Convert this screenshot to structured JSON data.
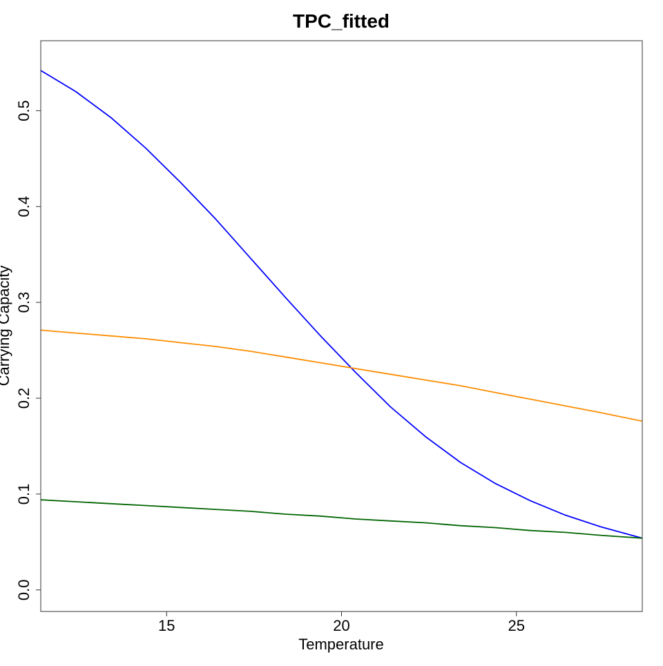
{
  "chart_data": {
    "type": "line",
    "title": "TPC_fitted",
    "xlabel": "Temperature",
    "ylabel": "Carrying Capacity",
    "xlim": [
      11.4,
      28.6
    ],
    "ylim": [
      -0.0225,
      0.573
    ],
    "grid": false,
    "x_ticks": [
      15,
      20,
      25
    ],
    "y_ticks": [
      0.0,
      0.1,
      0.2,
      0.3,
      0.4,
      0.5
    ],
    "x_tick_labels": [
      "15",
      "20",
      "25"
    ],
    "y_tick_labels": [
      "0.0",
      "0.1",
      "0.2",
      "0.3",
      "0.4",
      "0.5"
    ],
    "x": [
      11.4,
      12.4,
      13.4,
      14.4,
      15.4,
      16.4,
      17.4,
      18.4,
      19.4,
      20.4,
      21.4,
      22.4,
      23.4,
      24.4,
      25.4,
      26.4,
      27.4,
      28.6
    ],
    "series": [
      {
        "color": "#0000ff",
        "values": [
          0.542,
          0.52,
          0.493,
          0.461,
          0.425,
          0.387,
          0.346,
          0.305,
          0.265,
          0.227,
          0.191,
          0.16,
          0.133,
          0.111,
          0.093,
          0.078,
          0.066,
          0.054
        ]
      },
      {
        "color": "#ff8c00",
        "values": [
          0.271,
          0.268,
          0.265,
          0.262,
          0.258,
          0.254,
          0.249,
          0.243,
          0.237,
          0.231,
          0.225,
          0.219,
          0.213,
          0.206,
          0.199,
          0.192,
          0.185,
          0.176
        ]
      },
      {
        "color": "#006400",
        "values": [
          0.094,
          0.092,
          0.09,
          0.088,
          0.086,
          0.084,
          0.082,
          0.079,
          0.077,
          0.074,
          0.072,
          0.07,
          0.067,
          0.065,
          0.062,
          0.06,
          0.057,
          0.054
        ]
      }
    ]
  }
}
